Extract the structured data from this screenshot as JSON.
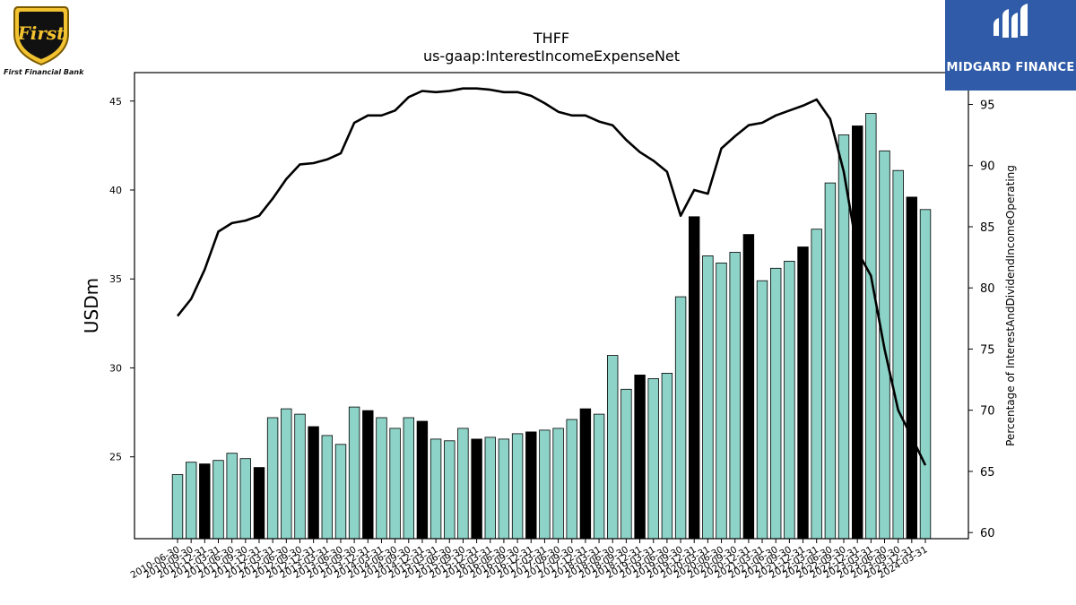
{
  "logos": {
    "left": {
      "text": "First Financial Bank",
      "emblem_text": "First"
    },
    "right": {
      "text": "MIDGARD FINANCE"
    }
  },
  "chart_data": {
    "type": "bar",
    "title": "THFF",
    "subtitle": "us-gaap:InterestIncomeExpenseNet",
    "ylabel": "USDm",
    "y2label": "Percentage of InterestAndDividendIncomeOperating",
    "ylim": [
      20.4,
      46.6
    ],
    "y2lim": [
      59.5,
      97.6
    ],
    "yticks": [
      25,
      30,
      35,
      40,
      45
    ],
    "y2ticks": [
      60,
      65,
      70,
      75,
      80,
      85,
      90,
      95
    ],
    "colors": {
      "bar": "#8dd3c7",
      "bar_q4": "#000000",
      "line": "#000000",
      "edge": "#000000"
    },
    "categories": [
      "2010-06-30",
      "2010-09-30",
      "2010-12-31",
      "2011-03-31",
      "2011-06-30",
      "2011-09-30",
      "2011-12-31",
      "2012-03-31",
      "2012-06-30",
      "2012-09-30",
      "2012-12-31",
      "2013-03-31",
      "2013-06-30",
      "2013-09-30",
      "2013-12-31",
      "2014-03-31",
      "2014-06-30",
      "2014-09-30",
      "2014-12-31",
      "2015-03-31",
      "2015-06-30",
      "2015-09-30",
      "2015-12-31",
      "2016-03-31",
      "2016-06-30",
      "2016-09-30",
      "2016-12-31",
      "2017-03-31",
      "2017-06-30",
      "2017-09-30",
      "2017-12-31",
      "2018-03-31",
      "2018-06-30",
      "2018-09-30",
      "2018-12-31",
      "2019-03-31",
      "2019-06-30",
      "2019-09-30",
      "2019-12-31",
      "2020-03-31",
      "2020-06-30",
      "2020-09-30",
      "2020-12-31",
      "2021-03-31",
      "2021-06-30",
      "2021-09-30",
      "2021-12-31",
      "2022-03-31",
      "2022-06-30",
      "2022-09-30",
      "2022-12-31",
      "2023-03-31",
      "2023-06-30",
      "2023-09-30",
      "2023-12-31",
      "2024-03-31"
    ],
    "tick_labels": [
      "2010-06-30",
      "2010-09-30",
      "2010-12-31",
      "2011-03-31",
      "2011-06-30",
      "2011-09-30",
      "2011-12-31",
      "2012-03-31",
      "2012-06-30",
      "2012-09-30",
      "2012-12-31",
      "2013-03-31",
      "2013-06-30",
      "2013-09-30",
      "2013-12-31",
      "2014-03-31",
      "2014-06-30",
      "2014-09-30",
      "2014-12-31",
      "2015-03-31",
      "2015-06-30",
      "2015-09-30",
      "2015-12-31",
      "2016-03-31",
      "2016-06-30",
      "2016-09-30",
      "2016-12-31",
      "2017-03-31",
      "2017-06-30",
      "2017-09-30",
      "2017-12-31",
      "2018-03-31",
      "2018-06-30",
      "2018-09-30",
      "2018-12-31",
      "2019-03-31",
      "2019-06-30",
      "2019-09-30",
      "2019-12-31",
      "2020-03-31",
      "2020-06-30",
      "2020-09-30",
      "2020-12-31",
      "2021-03-31",
      "2021-06-30",
      "2021-09-30",
      "2021-12-31",
      "2022-03-31",
      "2022-06-30",
      "2022-09-30",
      "2022-12-31",
      "2023-03-31",
      "2023-06-30",
      "2023-09-30",
      "2023-12-31",
      "2024-03-31"
    ],
    "series": [
      {
        "values": [
          24.0,
          24.7,
          24.6,
          24.8,
          25.2,
          24.9,
          24.4,
          27.2,
          27.7,
          27.4,
          26.7,
          26.2,
          25.7,
          27.8,
          27.6,
          27.2,
          26.6,
          27.2,
          27.0,
          26.0,
          25.9,
          26.6,
          26.0,
          26.1,
          26.0,
          26.3,
          26.4,
          26.5,
          26.6,
          27.1,
          27.7,
          27.4,
          30.7,
          28.8,
          29.6,
          29.4,
          29.7,
          34.0,
          38.5,
          36.3,
          35.9,
          36.5,
          37.5,
          34.9,
          35.6,
          36.0,
          36.8,
          37.8,
          40.4,
          43.1,
          43.6,
          44.3,
          42.2,
          41.1,
          39.6,
          38.9
        ]
      },
      {
        "values": [
          77.7,
          79.1,
          81.5,
          84.6,
          85.3,
          85.5,
          85.9,
          87.3,
          88.9,
          90.1,
          90.2,
          90.5,
          91.0,
          93.5,
          94.1,
          94.1,
          94.5,
          95.6,
          96.1,
          96.0,
          96.1,
          96.3,
          96.3,
          96.2,
          96.0,
          96.0,
          95.7,
          95.1,
          94.4,
          94.1,
          94.1,
          93.6,
          93.3,
          92.1,
          91.1,
          90.4,
          89.5,
          85.9,
          88.0,
          87.7,
          91.4,
          92.4,
          93.3,
          93.5,
          94.1,
          94.5,
          94.9,
          95.4,
          93.8,
          89.5,
          83.0,
          81.0,
          75.0,
          70.0,
          67.8,
          65.5
        ]
      }
    ]
  }
}
